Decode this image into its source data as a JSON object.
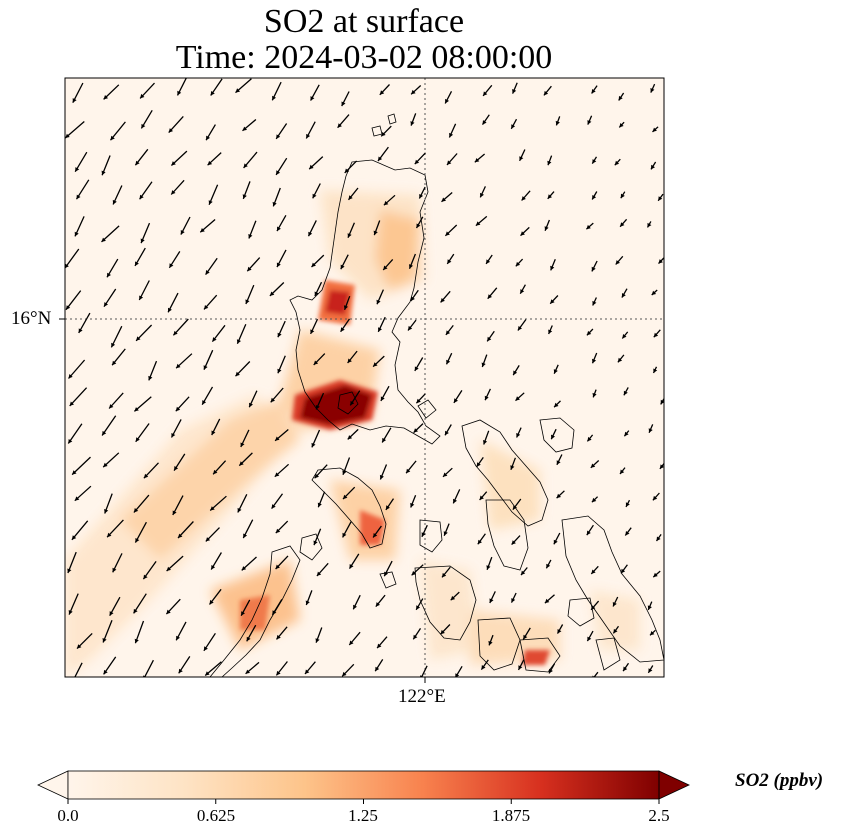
{
  "title": {
    "line1": "SO2 at surface",
    "line2": "Time: 2024-03-02 08:00:00"
  },
  "map": {
    "lat_label": "16°N",
    "lon_label": "122°E",
    "background_color": "#fff5eb",
    "coastline_color": "#000000",
    "gridline_style": "dotted"
  },
  "colorbar": {
    "title": "SO2 (ppbv)",
    "colormap": "OrRd",
    "min": 0.0,
    "max": 2.5,
    "extend": "both",
    "tick_labels": [
      "0.0",
      "0.625",
      "1.25",
      "1.875",
      "2.5"
    ],
    "stops": [
      "#fff5eb",
      "#fdd9a8",
      "#fca06c",
      "#e8522f",
      "#b3000a",
      "#7f0000"
    ]
  }
}
